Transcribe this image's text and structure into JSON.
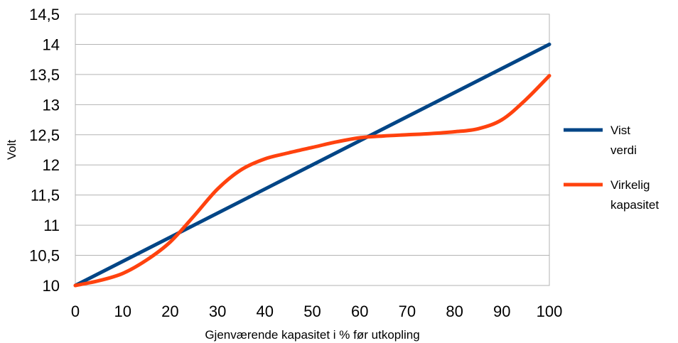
{
  "chart_data": {
    "type": "line",
    "xlabel": "Gjenværende kapasitet i % før utkopling",
    "ylabel": "Volt",
    "xlim": [
      0,
      100
    ],
    "ylim": [
      10,
      14.5
    ],
    "x_ticks": [
      "0",
      "10",
      "20",
      "30",
      "40",
      "50",
      "60",
      "70",
      "80",
      "90",
      "100"
    ],
    "y_ticks": [
      "10",
      "10,5",
      "11",
      "11,5",
      "12",
      "12,5",
      "13",
      "13,5",
      "14",
      "14,5"
    ],
    "grid": true,
    "legend_position": "right",
    "series": [
      {
        "name_lines": [
          "Vist",
          "verdi"
        ],
        "color": "#004586",
        "points": [
          [
            0,
            10.0
          ],
          [
            100,
            14.0
          ]
        ]
      },
      {
        "name_lines": [
          "Virkelig",
          "kapasitet"
        ],
        "color": "#ff420e",
        "points": [
          [
            0,
            10.0
          ],
          [
            5,
            10.08
          ],
          [
            10,
            10.2
          ],
          [
            15,
            10.42
          ],
          [
            20,
            10.72
          ],
          [
            25,
            11.15
          ],
          [
            30,
            11.6
          ],
          [
            35,
            11.92
          ],
          [
            40,
            12.1
          ],
          [
            45,
            12.2
          ],
          [
            50,
            12.29
          ],
          [
            55,
            12.38
          ],
          [
            60,
            12.45
          ],
          [
            65,
            12.48
          ],
          [
            70,
            12.5
          ],
          [
            75,
            12.52
          ],
          [
            80,
            12.55
          ],
          [
            85,
            12.6
          ],
          [
            90,
            12.75
          ],
          [
            95,
            13.08
          ],
          [
            100,
            13.48
          ]
        ]
      }
    ]
  }
}
